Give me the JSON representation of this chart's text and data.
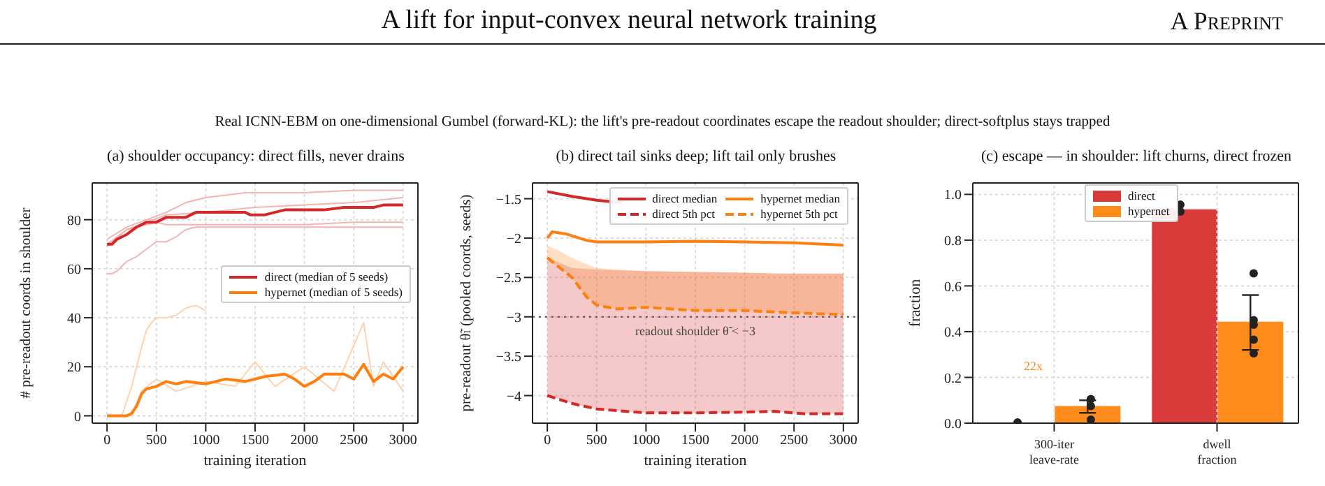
{
  "chart_data": [
    {
      "type": "line",
      "title": "(a) shoulder occupancy: direct fills, never drains",
      "xlabel": "training iteration",
      "ylabel": "# pre-readout coords in shoulder",
      "annotations": [
        "A lift for input-convex neural network training",
        "A Preprint",
        "Real ICNN-EBM on one-dimensional Gumbel (forward-KL): the lift's pre-readout coordinates escape the readout shoulder; direct-softplus stays trapped"
      ],
      "xlim": [
        -150,
        3150
      ],
      "xticks": [
        0,
        500,
        1000,
        1500,
        2000,
        2500,
        3000
      ],
      "ylim": [
        -3,
        95
      ],
      "yticks": [
        0,
        20,
        40,
        60,
        80
      ],
      "grid": true,
      "legend": "right",
      "series": [
        {
          "color": "#f5b3b3",
          "x": [
            0,
            200,
            400,
            600,
            800,
            1000,
            1400,
            2000,
            2500,
            3000
          ],
          "values": [
            72,
            77,
            80,
            83,
            87,
            89,
            91,
            91,
            92,
            92
          ]
        },
        {
          "color": "#f5b3b3",
          "x": [
            0,
            200,
            400,
            600,
            1000,
            1500,
            2000,
            2500,
            3000
          ],
          "values": [
            69,
            76,
            79,
            82,
            83,
            85,
            86,
            87,
            89
          ]
        },
        {
          "color": "#f5b3b3",
          "x": [
            0,
            200,
            400,
            500,
            600,
            1000,
            1500,
            2000,
            2500,
            3000
          ],
          "values": [
            70,
            76,
            78,
            79,
            78,
            78,
            78,
            78,
            79,
            79
          ]
        },
        {
          "color": "#f5b3b3",
          "x": [
            0,
            50,
            100,
            200,
            300,
            400,
            500,
            600,
            700,
            800,
            900,
            1500,
            2000,
            2500,
            3000
          ],
          "values": [
            58,
            58,
            59,
            63,
            65,
            68,
            71,
            71,
            73,
            76,
            77,
            77,
            77,
            77,
            77
          ]
        },
        {
          "color": "#ffd2ad",
          "x": [
            0,
            150,
            250,
            300,
            350,
            400,
            450,
            500,
            600,
            700,
            800,
            900,
            1000
          ],
          "values": [
            0,
            0,
            12,
            20,
            28,
            35,
            38,
            40,
            40,
            41,
            44,
            45,
            43
          ]
        },
        {
          "color": "#ffd2ad",
          "x": [
            0,
            250,
            350,
            500,
            700,
            1000,
            1300,
            1500,
            1700,
            2000,
            2300,
            2600,
            2700,
            2800,
            3000
          ],
          "values": [
            0,
            0,
            10,
            15,
            10,
            14,
            12,
            22,
            12,
            20,
            10,
            38,
            12,
            22,
            10
          ]
        },
        {
          "name": "direct (median of 5 seeds)",
          "color": "#d62728",
          "x": [
            0,
            50,
            100,
            150,
            200,
            300,
            400,
            500,
            550,
            600,
            800,
            850,
            900,
            1000,
            1400,
            1450,
            1600,
            1700,
            1800,
            2200,
            2400,
            2700,
            2800,
            3000
          ],
          "values": [
            70,
            70,
            72,
            73,
            74,
            77,
            79,
            79,
            80,
            81,
            81,
            82,
            83,
            83,
            83,
            82,
            82,
            83,
            84,
            84,
            85,
            85,
            86,
            86
          ]
        },
        {
          "name": "hypernet (median of 5 seeds)",
          "color": "#ff7f0e",
          "x": [
            0,
            200,
            250,
            300,
            350,
            400,
            500,
            600,
            700,
            800,
            1000,
            1200,
            1400,
            1600,
            1800,
            1900,
            2000,
            2100,
            2200,
            2400,
            2500,
            2600,
            2700,
            2800,
            2900,
            3000
          ],
          "values": [
            0,
            0,
            1,
            4,
            9,
            11,
            12,
            14,
            13,
            14,
            13,
            15,
            14,
            16,
            17,
            15,
            12,
            14,
            17,
            17,
            15,
            21,
            14,
            17,
            15,
            20
          ]
        }
      ]
    },
    {
      "type": "line",
      "title": "(b) direct tail sinks deep; lift tail only brushes",
      "xlabel": "training iteration",
      "ylabel": "pre-readout θ̃ₗ (pooled coords, seeds)",
      "xlim": [
        -150,
        3150
      ],
      "xticks": [
        0,
        500,
        1000,
        1500,
        2000,
        2500,
        3000
      ],
      "ylim": [
        -4.35,
        -1.3
      ],
      "yticks": [
        -4.0,
        -3.5,
        -3.0,
        -2.5,
        -2.0,
        -1.5
      ],
      "grid": true,
      "legend": "top right",
      "ref_lines": [
        {
          "axis": "y",
          "value": -3.0,
          "label": "readout shoulder θ̃ < −3",
          "color": "#555555",
          "line_style": "dotted"
        }
      ],
      "series": [
        {
          "name": "direct median",
          "color": "#d62728",
          "line_style": "solid",
          "x": [
            0,
            250,
            500,
            750
          ],
          "values": [
            -1.41,
            -1.47,
            -1.52,
            -1.55
          ]
        },
        {
          "name": "direct 5th pct",
          "color": "#d62728",
          "line_style": "dashed",
          "x": [
            0,
            250,
            500,
            1000,
            1500,
            2000,
            2300,
            2600,
            3000
          ],
          "values": [
            -4.0,
            -4.1,
            -4.17,
            -4.22,
            -4.22,
            -4.21,
            -4.2,
            -4.23,
            -4.23
          ],
          "lower": [
            -4.0,
            -4.1,
            -4.17,
            -4.22,
            -4.22,
            -4.21,
            -4.2,
            -4.23,
            -4.23
          ],
          "upper": [
            -2.25,
            -2.38,
            -2.4,
            -2.42,
            -2.43,
            -2.44,
            -2.45,
            -2.45,
            -2.45
          ]
        },
        {
          "name": "hypernet median",
          "color": "#ff7f0e",
          "line_style": "solid",
          "x": [
            0,
            50,
            200,
            400,
            500,
            1000,
            1500,
            2000,
            2500,
            3000
          ],
          "values": [
            -2.0,
            -1.92,
            -1.95,
            -2.03,
            -2.05,
            -2.05,
            -2.04,
            -2.05,
            -2.06,
            -2.09
          ]
        },
        {
          "name": "hypernet 5th pct",
          "color": "#ff7f0e",
          "line_style": "dashed",
          "x": [
            0,
            100,
            250,
            400,
            500,
            700,
            1000,
            1500,
            2000,
            2500,
            3000
          ],
          "values": [
            -2.25,
            -2.35,
            -2.5,
            -2.75,
            -2.85,
            -2.9,
            -2.88,
            -2.92,
            -2.92,
            -2.95,
            -2.97
          ],
          "lower": [
            -2.25,
            -2.35,
            -2.5,
            -2.75,
            -2.85,
            -2.9,
            -2.88,
            -2.92,
            -2.92,
            -2.95,
            -2.97
          ],
          "upper": [
            -2.1,
            -2.15,
            -2.25,
            -2.33,
            -2.38,
            -2.4,
            -2.42,
            -2.43,
            -2.44,
            -2.45,
            -2.45
          ]
        }
      ]
    },
    {
      "type": "bar",
      "title": "(c) escape — in shoulder: lift churns, direct frozen",
      "ylabel": "fraction",
      "categories": [
        "300-iter leave-rate",
        "dwell fraction"
      ],
      "ylim": [
        0,
        1.05
      ],
      "yticks": [
        {
          "value": 0,
          "label": "0.0"
        },
        {
          "value": 0.2,
          "label": "0.2"
        },
        {
          "value": 0.4,
          "label": "0.4"
        },
        {
          "value": 0.6,
          "label": "0.6"
        },
        {
          "value": 0.8,
          "label": "0.8"
        },
        {
          "value": 1.0,
          "label": "1.0"
        }
      ],
      "grid": true,
      "legend": "top",
      "marker": "circle",
      "annotations": [
        "22x"
      ],
      "series": [
        {
          "name": "direct",
          "color": "#d93b3b",
          "values": [
            0.002,
            0.935
          ]
        },
        {
          "name": "hypernet",
          "color": "#ff8c1a",
          "values": [
            0.075,
            0.443
          ],
          "errors": [
            [
              0.045,
              0.1
            ],
            [
              0.32,
              0.56
            ]
          ]
        },
        {
          "type": "scatter",
          "color": "#222222",
          "x": [
            "300-iter leave-rate",
            "dwell fraction",
            "dwell fraction"
          ],
          "values": [
            0.003,
            0.925,
            0.955
          ]
        },
        {
          "type": "scatter",
          "color": "#222222",
          "x": [
            "300-iter leave-rate",
            "300-iter leave-rate",
            "300-iter leave-rate",
            "dwell fraction",
            "dwell fraction",
            "dwell fraction",
            "dwell fraction",
            "dwell fraction"
          ],
          "values": [
            0.015,
            0.075,
            0.105,
            0.305,
            0.365,
            0.43,
            0.45,
            0.655
          ]
        }
      ]
    }
  ]
}
